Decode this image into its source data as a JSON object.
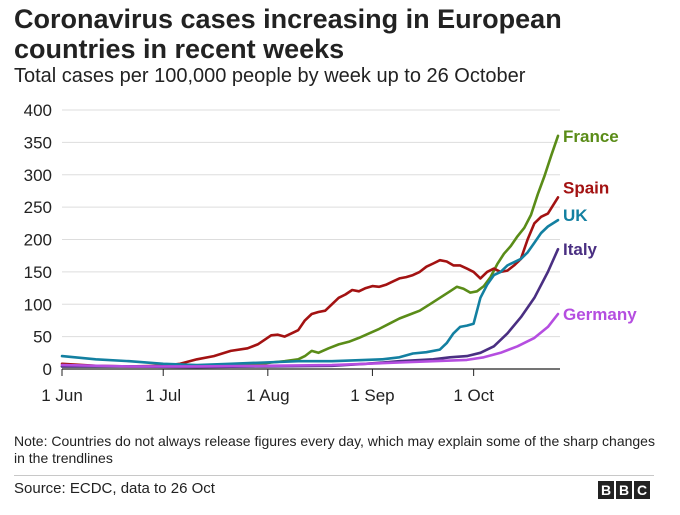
{
  "header": {
    "title": "Coronavirus cases increasing in European countries in recent weeks",
    "subtitle": "Total cases per 100,000 people by week up to 26 October"
  },
  "footer": {
    "note": "Note: Countries do not always release figures every day, which may explain some of the sharp changes in the trendlines",
    "source": "Source: ECDC, data to 26 Oct",
    "logo": [
      "B",
      "B",
      "C"
    ]
  },
  "chart_data": {
    "type": "line",
    "title": "Coronavirus cases increasing in European countries in recent weeks",
    "subtitle": "Total cases per 100,000 people by week up to 26 October",
    "xlabel": "",
    "ylabel": "",
    "x_ticks": [
      "1 Jun",
      "1 Jul",
      "1 Aug",
      "1 Sep",
      "1 Oct"
    ],
    "x_tick_days": [
      0,
      30,
      61,
      92,
      122
    ],
    "x_range": [
      0,
      147
    ],
    "y_ticks": [
      0,
      50,
      100,
      150,
      200,
      250,
      300,
      350,
      400
    ],
    "ylim": [
      0,
      400
    ],
    "grid": true,
    "series": [
      {
        "name": "France",
        "color": "#5a8c18",
        "x": [
          0,
          10,
          20,
          30,
          38,
          46,
          52,
          58,
          62,
          66,
          70,
          72,
          74,
          76,
          79,
          82,
          85,
          88,
          91,
          94,
          97,
          100,
          103,
          106,
          109,
          112,
          115,
          117,
          119,
          121,
          123,
          125,
          127,
          129,
          131,
          133,
          135,
          137,
          139,
          141,
          143,
          145,
          147
        ],
        "y": [
          4,
          4,
          4,
          4,
          4,
          5,
          6,
          7,
          10,
          12,
          15,
          20,
          28,
          25,
          32,
          38,
          42,
          48,
          55,
          62,
          70,
          78,
          84,
          90,
          100,
          110,
          120,
          127,
          124,
          118,
          120,
          128,
          142,
          162,
          178,
          190,
          205,
          218,
          238,
          270,
          298,
          330,
          360
        ]
      },
      {
        "name": "Spain",
        "color": "#a31212",
        "x": [
          0,
          10,
          20,
          30,
          35,
          40,
          45,
          50,
          55,
          58,
          60,
          62,
          64,
          66,
          68,
          70,
          72,
          74,
          76,
          78,
          80,
          82,
          84,
          86,
          88,
          90,
          92,
          94,
          96,
          98,
          100,
          102,
          104,
          106,
          108,
          110,
          112,
          114,
          116,
          118,
          120,
          122,
          124,
          126,
          128,
          130,
          132,
          134,
          136,
          138,
          140,
          142,
          144,
          147
        ],
        "y": [
          8,
          5,
          4,
          5,
          8,
          15,
          20,
          28,
          32,
          38,
          45,
          52,
          53,
          50,
          55,
          60,
          75,
          85,
          88,
          90,
          100,
          110,
          115,
          122,
          120,
          125,
          128,
          127,
          130,
          135,
          140,
          142,
          145,
          150,
          158,
          163,
          168,
          166,
          160,
          160,
          155,
          150,
          140,
          150,
          155,
          150,
          152,
          160,
          170,
          200,
          225,
          235,
          240,
          265
        ]
      },
      {
        "name": "UK",
        "color": "#1380a1",
        "x": [
          0,
          10,
          20,
          30,
          40,
          50,
          60,
          70,
          80,
          90,
          95,
          100,
          104,
          108,
          112,
          114,
          116,
          118,
          120,
          122,
          124,
          126,
          128,
          130,
          132,
          134,
          136,
          138,
          140,
          142,
          144,
          147
        ],
        "y": [
          20,
          15,
          12,
          8,
          6,
          8,
          10,
          12,
          12,
          14,
          15,
          18,
          24,
          26,
          30,
          40,
          55,
          65,
          67,
          70,
          110,
          130,
          145,
          150,
          160,
          165,
          170,
          180,
          195,
          210,
          220,
          230
        ]
      },
      {
        "name": "Italy",
        "color": "#4a2f82",
        "x": [
          0,
          20,
          40,
          60,
          80,
          90,
          100,
          110,
          115,
          120,
          124,
          128,
          132,
          136,
          140,
          144,
          147
        ],
        "y": [
          4,
          4,
          3,
          4,
          5,
          8,
          12,
          15,
          18,
          20,
          25,
          35,
          55,
          80,
          110,
          150,
          185
        ]
      },
      {
        "name": "Germany",
        "color": "#b54ee0",
        "x": [
          0,
          20,
          40,
          60,
          80,
          90,
          100,
          110,
          120,
          125,
          130,
          135,
          140,
          144,
          147
        ],
        "y": [
          6,
          4,
          4,
          5,
          6,
          8,
          10,
          12,
          14,
          18,
          25,
          35,
          48,
          65,
          85
        ]
      }
    ]
  }
}
